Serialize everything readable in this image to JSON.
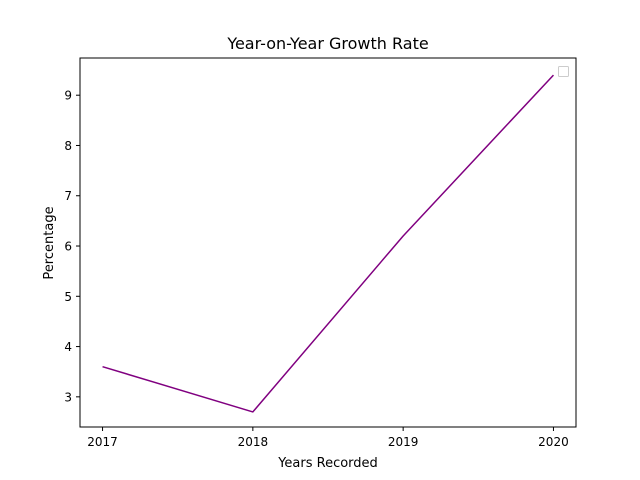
{
  "chart_data": {
    "type": "line",
    "title": "Year-on-Year Growth Rate",
    "xlabel": "Years Recorded",
    "ylabel": "Percentage",
    "categories": [
      "2017",
      "2018",
      "2019",
      "2020"
    ],
    "series": [
      {
        "values": [
          3.6,
          2.7,
          6.2,
          9.4
        ],
        "color": "#800080"
      }
    ],
    "xlim": [
      2016.85,
      2020.15
    ],
    "ylim": [
      2.4,
      9.74
    ],
    "yticks": [
      3,
      4,
      5,
      6,
      7,
      8,
      9
    ],
    "grid": false,
    "legend": {
      "placement": "top-right",
      "entries": []
    }
  }
}
